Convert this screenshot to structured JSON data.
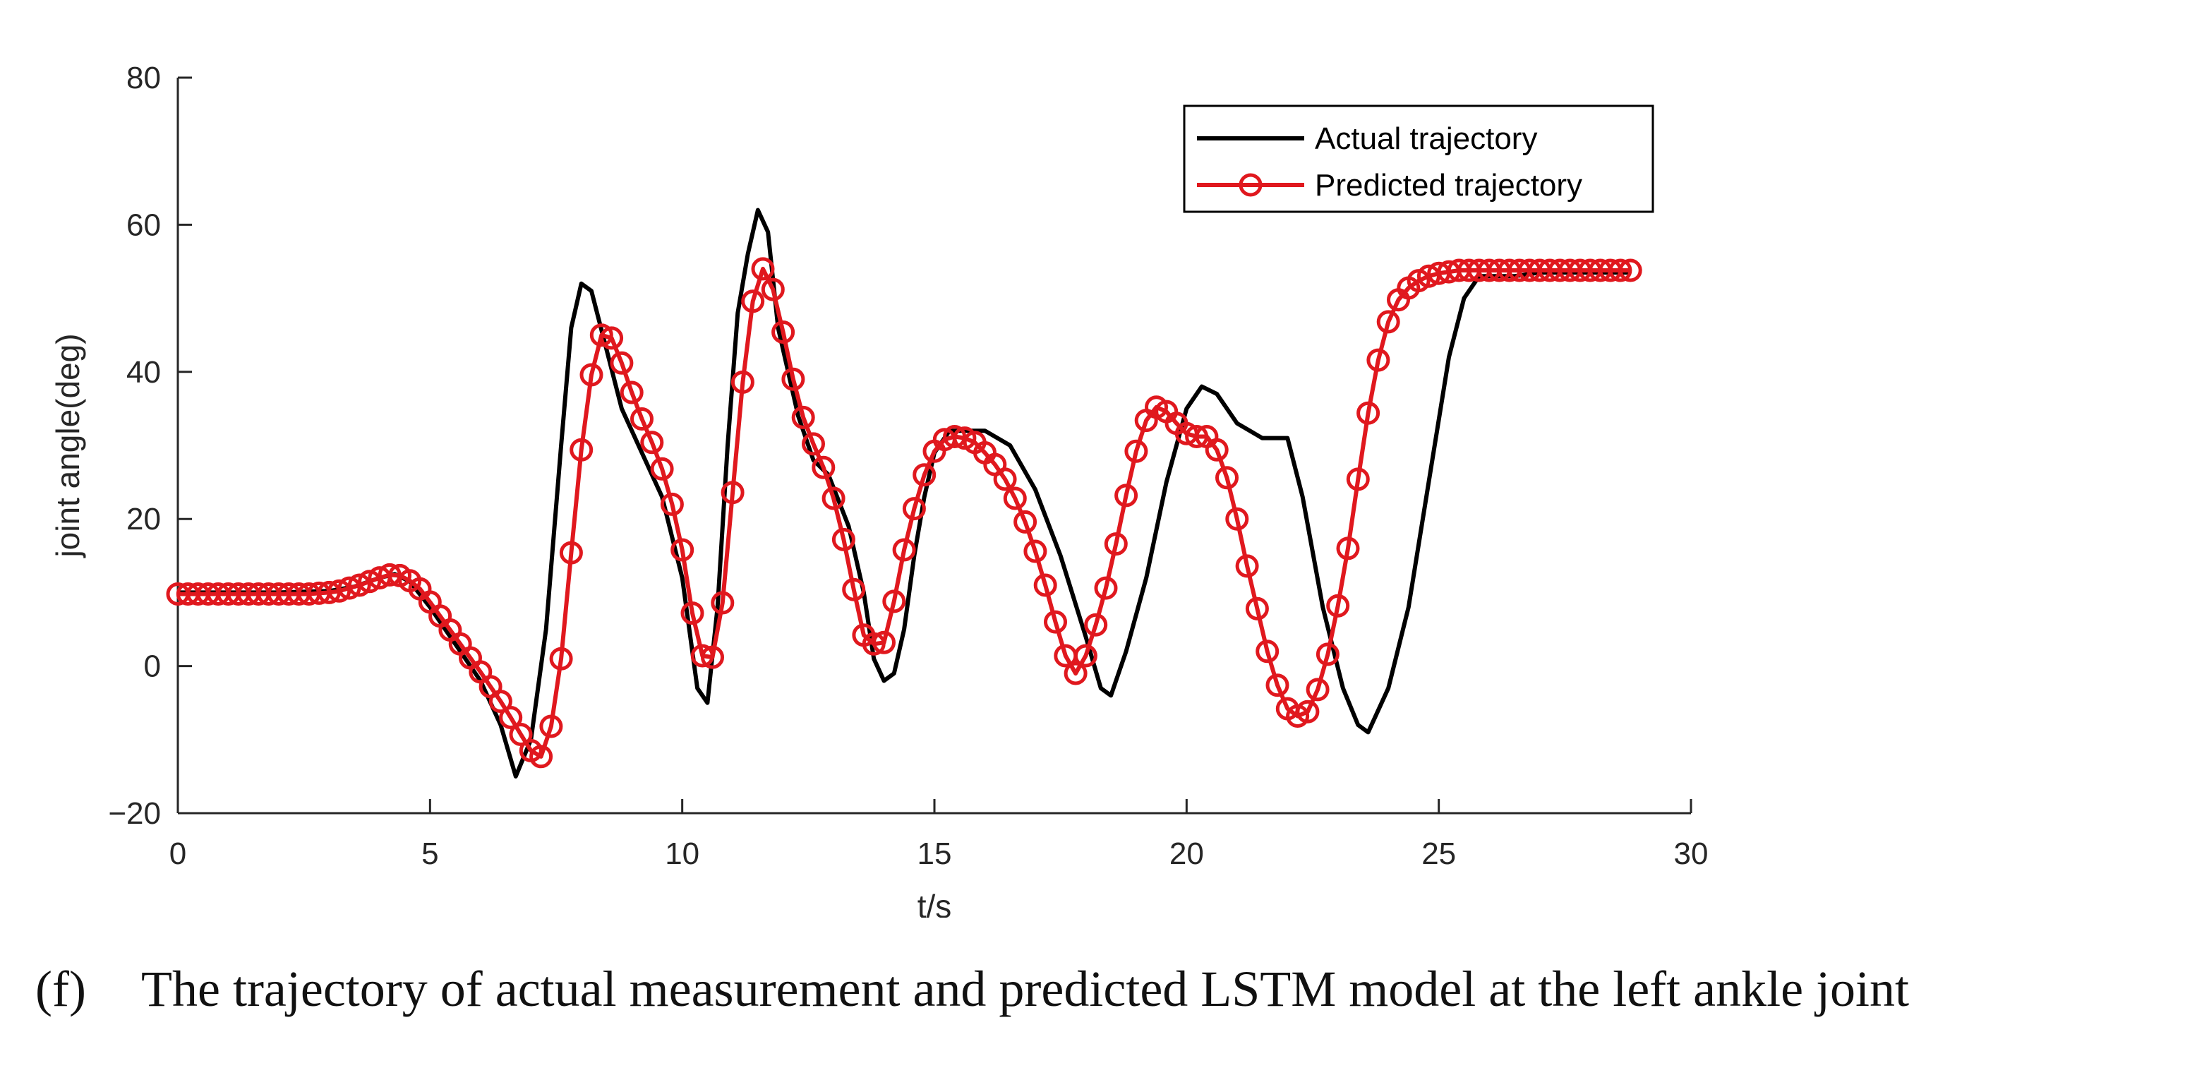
{
  "caption": {
    "label": "(f)",
    "text": "The trajectory of actual measurement and predicted LSTM model at the left ankle joint"
  },
  "colors": {
    "actual": "#000000",
    "predicted": "#e0181e",
    "axis": "#262626"
  },
  "chart_data": {
    "type": "line",
    "title": "",
    "xlabel": "t/s",
    "ylabel": "joint angle(deg)",
    "xlim": [
      0,
      30
    ],
    "ylim": [
      -20,
      80
    ],
    "xticks": [
      0,
      5,
      10,
      15,
      20,
      25,
      30
    ],
    "yticks": [
      -20,
      0,
      20,
      40,
      60,
      80
    ],
    "xtick_labels": [
      "0",
      "5",
      "10",
      "15",
      "20",
      "25",
      "30"
    ],
    "ytick_labels": [
      "−20",
      "0",
      "20",
      "40",
      "60",
      "80"
    ],
    "grid": false,
    "legend_position": "top-right",
    "series": [
      {
        "name": "Actual trajectory",
        "style": "line",
        "points": [
          [
            0,
            10
          ],
          [
            1,
            10
          ],
          [
            2,
            10
          ],
          [
            3,
            10.2
          ],
          [
            3.5,
            10.8
          ],
          [
            4,
            12
          ],
          [
            4.3,
            12.5
          ],
          [
            4.6,
            11.5
          ],
          [
            5,
            8
          ],
          [
            5.5,
            3
          ],
          [
            6,
            -2
          ],
          [
            6.4,
            -8
          ],
          [
            6.7,
            -15
          ],
          [
            7,
            -10
          ],
          [
            7.3,
            5
          ],
          [
            7.6,
            30
          ],
          [
            7.8,
            46
          ],
          [
            8,
            52
          ],
          [
            8.2,
            51
          ],
          [
            8.5,
            43
          ],
          [
            8.8,
            35
          ],
          [
            9.2,
            29
          ],
          [
            9.6,
            23
          ],
          [
            10,
            12
          ],
          [
            10.3,
            -3
          ],
          [
            10.5,
            -5
          ],
          [
            10.7,
            8
          ],
          [
            10.9,
            30
          ],
          [
            11.1,
            48
          ],
          [
            11.3,
            56
          ],
          [
            11.5,
            62
          ],
          [
            11.7,
            59
          ],
          [
            11.9,
            46
          ],
          [
            12.3,
            34
          ],
          [
            12.6,
            28
          ],
          [
            12.9,
            26
          ],
          [
            13.3,
            19
          ],
          [
            13.6,
            10
          ],
          [
            13.8,
            1
          ],
          [
            14,
            -2
          ],
          [
            14.2,
            -1
          ],
          [
            14.4,
            5
          ],
          [
            14.6,
            15
          ],
          [
            14.8,
            23
          ],
          [
            15,
            29
          ],
          [
            15.3,
            32
          ],
          [
            15.6,
            32
          ],
          [
            16,
            32
          ],
          [
            16.5,
            30
          ],
          [
            17,
            24
          ],
          [
            17.5,
            15
          ],
          [
            18,
            4
          ],
          [
            18.3,
            -3
          ],
          [
            18.5,
            -4
          ],
          [
            18.8,
            2
          ],
          [
            19.2,
            12
          ],
          [
            19.6,
            25
          ],
          [
            20,
            35
          ],
          [
            20.3,
            38
          ],
          [
            20.6,
            37
          ],
          [
            21,
            33
          ],
          [
            21.5,
            31
          ],
          [
            22,
            31
          ],
          [
            22.3,
            23
          ],
          [
            22.7,
            8
          ],
          [
            23.1,
            -3
          ],
          [
            23.4,
            -8
          ],
          [
            23.6,
            -9
          ],
          [
            24,
            -3
          ],
          [
            24.4,
            8
          ],
          [
            24.8,
            25
          ],
          [
            25.2,
            42
          ],
          [
            25.5,
            50
          ],
          [
            25.8,
            53
          ],
          [
            26.5,
            53
          ],
          [
            27,
            53.5
          ],
          [
            28.8,
            53.5
          ]
        ]
      },
      {
        "name": "Predicted trajectory",
        "style": "line-circle",
        "points": [
          [
            0,
            9.8
          ],
          [
            0.2,
            9.8
          ],
          [
            0.4,
            9.8
          ],
          [
            0.6,
            9.8
          ],
          [
            0.8,
            9.8
          ],
          [
            1,
            9.8
          ],
          [
            1.2,
            9.8
          ],
          [
            1.4,
            9.8
          ],
          [
            1.6,
            9.8
          ],
          [
            1.8,
            9.8
          ],
          [
            2,
            9.8
          ],
          [
            2.2,
            9.8
          ],
          [
            2.4,
            9.8
          ],
          [
            2.6,
            9.8
          ],
          [
            2.8,
            9.9
          ],
          [
            3,
            10
          ],
          [
            3.2,
            10.2
          ],
          [
            3.4,
            10.6
          ],
          [
            3.6,
            11
          ],
          [
            3.8,
            11.5
          ],
          [
            4,
            12
          ],
          [
            4.2,
            12.4
          ],
          [
            4.4,
            12.3
          ],
          [
            4.6,
            11.6
          ],
          [
            4.8,
            10.5
          ],
          [
            5,
            8.7
          ],
          [
            5.2,
            6.8
          ],
          [
            5.4,
            4.9
          ],
          [
            5.6,
            3
          ],
          [
            5.8,
            1.1
          ],
          [
            6,
            -0.8
          ],
          [
            6.2,
            -2.8
          ],
          [
            6.4,
            -4.8
          ],
          [
            6.6,
            -7
          ],
          [
            6.8,
            -9.3
          ],
          [
            7,
            -11.5
          ],
          [
            7.2,
            -12.3
          ],
          [
            7.4,
            -8.2
          ],
          [
            7.6,
            1
          ],
          [
            7.8,
            15.4
          ],
          [
            8,
            29.4
          ],
          [
            8.2,
            39.6
          ],
          [
            8.4,
            45
          ],
          [
            8.6,
            44.6
          ],
          [
            8.8,
            41.2
          ],
          [
            9,
            37.2
          ],
          [
            9.2,
            33.6
          ],
          [
            9.4,
            30.4
          ],
          [
            9.6,
            26.8
          ],
          [
            9.8,
            22
          ],
          [
            10,
            15.8
          ],
          [
            10.2,
            7.2
          ],
          [
            10.4,
            1.4
          ],
          [
            10.6,
            1.2
          ],
          [
            10.8,
            8.6
          ],
          [
            11,
            23.6
          ],
          [
            11.2,
            38.6
          ],
          [
            11.4,
            49.6
          ],
          [
            11.6,
            54
          ],
          [
            11.8,
            51.2
          ],
          [
            12,
            45.4
          ],
          [
            12.2,
            39
          ],
          [
            12.4,
            33.8
          ],
          [
            12.6,
            30.2
          ],
          [
            12.8,
            27
          ],
          [
            13,
            22.8
          ],
          [
            13.2,
            17.2
          ],
          [
            13.4,
            10.4
          ],
          [
            13.6,
            4.2
          ],
          [
            13.8,
            3
          ],
          [
            14,
            3.2
          ],
          [
            14.2,
            8.8
          ],
          [
            14.4,
            15.8
          ],
          [
            14.6,
            21.4
          ],
          [
            14.8,
            26
          ],
          [
            15,
            29.2
          ],
          [
            15.2,
            30.8
          ],
          [
            15.4,
            31.2
          ],
          [
            15.6,
            31
          ],
          [
            15.8,
            30.4
          ],
          [
            16,
            29
          ],
          [
            16.2,
            27.4
          ],
          [
            16.4,
            25.4
          ],
          [
            16.6,
            22.8
          ],
          [
            16.8,
            19.6
          ],
          [
            17,
            15.6
          ],
          [
            17.2,
            11
          ],
          [
            17.4,
            6
          ],
          [
            17.6,
            1.4
          ],
          [
            17.8,
            -1
          ],
          [
            18,
            1.4
          ],
          [
            18.2,
            5.6
          ],
          [
            18.4,
            10.6
          ],
          [
            18.6,
            16.6
          ],
          [
            18.8,
            23.2
          ],
          [
            19,
            29.2
          ],
          [
            19.2,
            33.4
          ],
          [
            19.4,
            35.2
          ],
          [
            19.6,
            34.6
          ],
          [
            19.8,
            33
          ],
          [
            20,
            31.6
          ],
          [
            20.2,
            31.2
          ],
          [
            20.4,
            31.2
          ],
          [
            20.6,
            29.4
          ],
          [
            20.8,
            25.6
          ],
          [
            21,
            20
          ],
          [
            21.2,
            13.6
          ],
          [
            21.4,
            7.8
          ],
          [
            21.6,
            2
          ],
          [
            21.8,
            -2.6
          ],
          [
            22,
            -5.8
          ],
          [
            22.2,
            -6.8
          ],
          [
            22.4,
            -6.2
          ],
          [
            22.6,
            -3.2
          ],
          [
            22.8,
            1.6
          ],
          [
            23,
            8.2
          ],
          [
            23.2,
            16
          ],
          [
            23.4,
            25.4
          ],
          [
            23.6,
            34.4
          ],
          [
            23.8,
            41.6
          ],
          [
            24,
            46.8
          ],
          [
            24.2,
            49.8
          ],
          [
            24.4,
            51.4
          ],
          [
            24.6,
            52.4
          ],
          [
            24.8,
            53
          ],
          [
            25,
            53.4
          ],
          [
            25.2,
            53.6
          ],
          [
            25.4,
            53.8
          ],
          [
            25.6,
            53.8
          ],
          [
            25.8,
            53.8
          ],
          [
            26,
            53.8
          ],
          [
            26.2,
            53.8
          ],
          [
            26.4,
            53.8
          ],
          [
            26.6,
            53.8
          ],
          [
            26.8,
            53.8
          ],
          [
            27,
            53.8
          ],
          [
            27.2,
            53.8
          ],
          [
            27.4,
            53.8
          ],
          [
            27.6,
            53.8
          ],
          [
            27.8,
            53.8
          ],
          [
            28,
            53.8
          ],
          [
            28.2,
            53.8
          ],
          [
            28.4,
            53.8
          ],
          [
            28.6,
            53.8
          ],
          [
            28.8,
            53.8
          ]
        ]
      }
    ]
  }
}
